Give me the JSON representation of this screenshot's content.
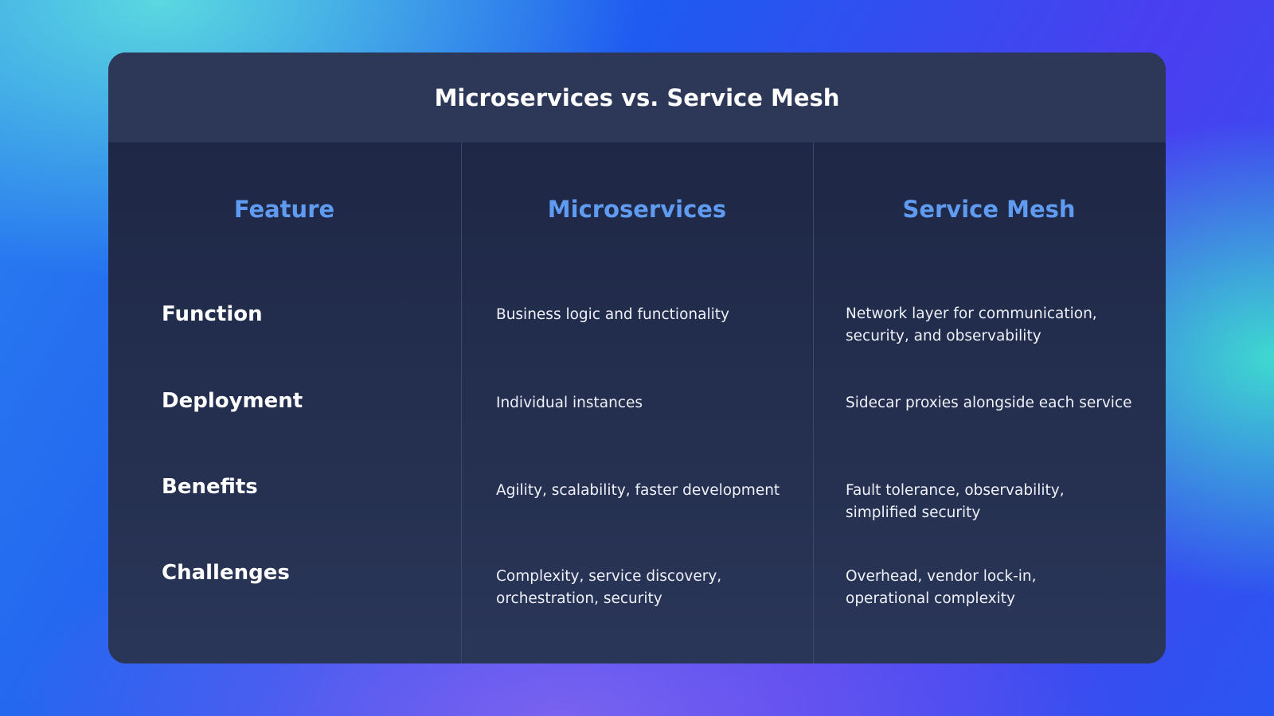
{
  "title": "Microservices vs. Service Mesh",
  "headers": [
    "Feature",
    "Microservices",
    "Service Mesh"
  ],
  "rows": [
    {
      "feature": "Function",
      "microservices": "Business logic and functionality",
      "service_mesh": "Network layer for communication, security, and observability"
    },
    {
      "feature": "Deployment",
      "microservices": "Individual instances",
      "service_mesh": "Sidecar proxies alongside each service"
    },
    {
      "feature": "Benefits",
      "microservices": "Agility, scalability, faster development",
      "service_mesh": "Fault tolerance, observability, simplified security"
    },
    {
      "feature": "Challenges",
      "microservices": "Complexity, service discovery, orchestration, security",
      "service_mesh": "Overhead, vendor lock-in, operational complexity"
    }
  ],
  "colors": {
    "header_text": "#5f9bf0",
    "card": "#1c2442"
  }
}
